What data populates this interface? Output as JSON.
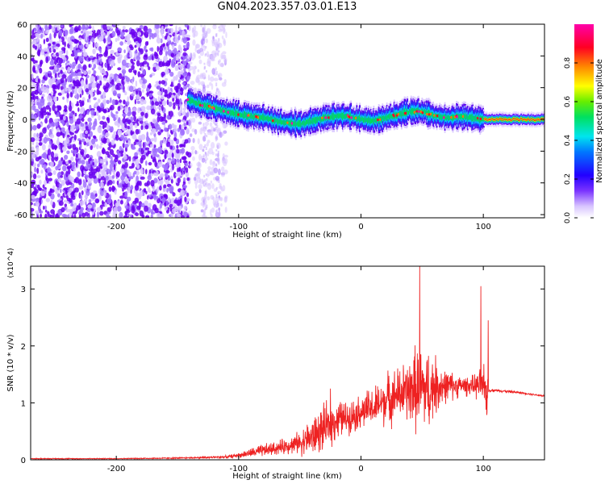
{
  "title": "GN04.2023.357.03.01.E13",
  "chart_data": [
    {
      "type": "heatmap",
      "xlabel": "Height of straight line (km)",
      "ylabel": "Frequency (Hz)",
      "xlim": [
        -270,
        150
      ],
      "ylim": [
        -62,
        60
      ],
      "x_ticks": [
        -200,
        -100,
        0,
        100
      ],
      "y_ticks": [
        -60,
        -40,
        -20,
        0,
        20,
        40,
        60
      ],
      "grid": false,
      "colorbar": {
        "label": "Normalized spectral amplitude",
        "ticks": [
          0.0,
          0.2,
          0.4,
          0.6,
          0.8
        ],
        "range": [
          0,
          1
        ],
        "colormap": [
          "#ffffff",
          "#b388ff",
          "#5500ee",
          "#0000ff",
          "#00e5ff",
          "#00e000",
          "#ffff00",
          "#ff8800",
          "#ff0033",
          "#ff00aa"
        ]
      },
      "regions": [
        {
          "name": "broadband noise",
          "x_range": [
            -270,
            -140
          ],
          "freq_range": [
            -62,
            60
          ],
          "amplitude": 0.15
        },
        {
          "name": "sparse noise",
          "x_range": [
            -140,
            -110
          ],
          "freq_range": [
            -62,
            60
          ],
          "amplitude": 0.05
        }
      ],
      "ridge": {
        "x": [
          -140,
          -130,
          -120,
          -110,
          -100,
          -90,
          -80,
          -70,
          -60,
          -50,
          -40,
          -30,
          -20,
          -10,
          0,
          10,
          20,
          30,
          40,
          50,
          60,
          70,
          80,
          90,
          100,
          150
        ],
        "freq": [
          12,
          9,
          7,
          5,
          3,
          2,
          1,
          -1,
          -2,
          -3,
          -1,
          1,
          2,
          2,
          0,
          -1,
          1,
          3,
          5,
          5,
          2,
          1,
          2,
          1,
          0,
          0
        ],
        "peak_amplitude": 0.95
      }
    },
    {
      "type": "line",
      "xlabel": "Height of straight line (km)",
      "ylabel": "SNR (10 * v/v)",
      "y_multiplier": "(x10^4)",
      "xlim": [
        -270,
        150
      ],
      "ylim": [
        0,
        3.4
      ],
      "x_ticks": [
        -200,
        -100,
        0,
        100
      ],
      "y_ticks": [
        0,
        1,
        2,
        3
      ],
      "grid": false,
      "color": "#ee2222",
      "envelope": {
        "x": [
          -270,
          -200,
          -150,
          -110,
          -100,
          -90,
          -80,
          -70,
          -60,
          -50,
          -40,
          -30,
          -20,
          -10,
          0,
          10,
          20,
          30,
          40,
          45,
          50,
          55,
          60,
          70,
          80,
          90,
          95,
          100,
          103,
          105,
          110,
          120,
          130,
          140,
          150
        ],
        "base": [
          0.02,
          0.02,
          0.03,
          0.05,
          0.08,
          0.12,
          0.16,
          0.2,
          0.25,
          0.3,
          0.4,
          0.55,
          0.7,
          0.75,
          0.85,
          0.9,
          1.05,
          1.15,
          1.2,
          1.25,
          1.25,
          1.2,
          1.3,
          1.3,
          1.3,
          1.3,
          1.3,
          1.25,
          1.2,
          1.22,
          1.22,
          1.2,
          1.18,
          1.15,
          1.12
        ],
        "amp": [
          0.01,
          0.01,
          0.015,
          0.03,
          0.05,
          0.1,
          0.15,
          0.15,
          0.18,
          0.25,
          0.45,
          0.5,
          0.45,
          0.35,
          0.4,
          0.45,
          0.55,
          0.6,
          0.75,
          0.95,
          1.0,
          0.9,
          0.7,
          0.35,
          0.25,
          0.2,
          0.3,
          0.5,
          0.6,
          0.03,
          0.03,
          0.03,
          0.02,
          0.02,
          0.02
        ]
      },
      "spikes": [
        {
          "x": 48,
          "value": 3.4
        },
        {
          "x": 98,
          "value": 3.05
        },
        {
          "x": 104,
          "value": 2.45
        },
        {
          "x": -25,
          "value": 1.25
        }
      ]
    }
  ]
}
